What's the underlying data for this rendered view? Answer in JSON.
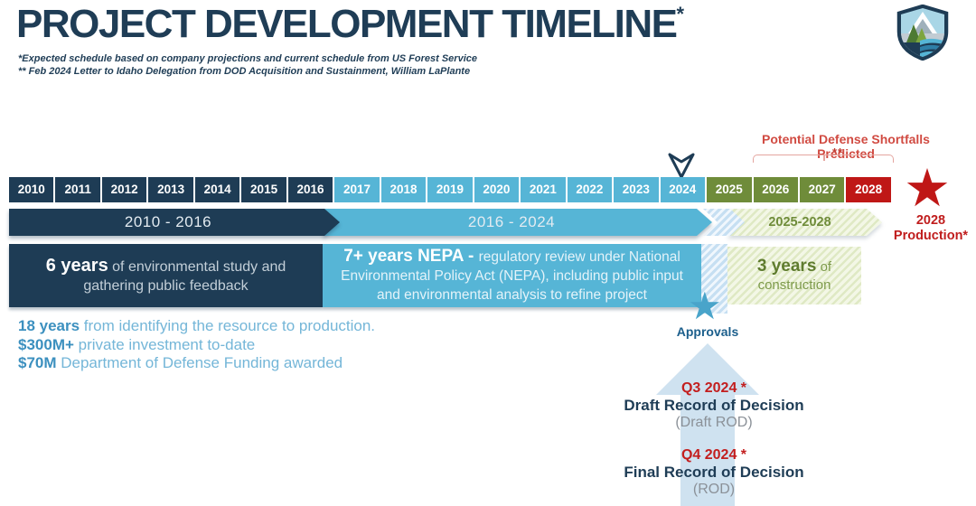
{
  "header": {
    "title": "PROJECT DEVELOPMENT TIMELINE",
    "title_note": "*",
    "footnote1": "*Expected schedule based on company projections and current schedule from US Forest Service",
    "footnote2": "** Feb 2024 Letter to Idaho Delegation from DOD Acquisition and Sustainment, William LaPlante"
  },
  "annotations": {
    "shortfall_label": "Potential Defense Shortfalls Predicted",
    "shortfall_note": "**",
    "approvals_label": "Approvals",
    "production_line1": "2028",
    "production_line2": "Production*"
  },
  "icons": {
    "star_glyph": "★",
    "logo_name": "mountain-shield-logo",
    "chevron_name": "chevron-down-2024"
  },
  "timeline": {
    "years": [
      {
        "label": "2010",
        "phase": "navy"
      },
      {
        "label": "2011",
        "phase": "navy"
      },
      {
        "label": "2012",
        "phase": "navy"
      },
      {
        "label": "2013",
        "phase": "navy"
      },
      {
        "label": "2014",
        "phase": "navy"
      },
      {
        "label": "2015",
        "phase": "navy"
      },
      {
        "label": "2016",
        "phase": "navy"
      },
      {
        "label": "2017",
        "phase": "blue"
      },
      {
        "label": "2018",
        "phase": "blue"
      },
      {
        "label": "2019",
        "phase": "blue"
      },
      {
        "label": "2020",
        "phase": "blue"
      },
      {
        "label": "2021",
        "phase": "blue"
      },
      {
        "label": "2022",
        "phase": "blue"
      },
      {
        "label": "2023",
        "phase": "blue"
      },
      {
        "label": "2024",
        "phase": "blue"
      },
      {
        "label": "2025",
        "phase": "olive"
      },
      {
        "label": "2026",
        "phase": "olive"
      },
      {
        "label": "2027",
        "phase": "olive"
      },
      {
        "label": "2028",
        "phase": "red"
      }
    ]
  },
  "phases": [
    {
      "label": "2010 - 2016"
    },
    {
      "label": "2016 - 2024"
    },
    {
      "label": "2025-2028"
    }
  ],
  "blocks": {
    "study": {
      "lead": "6 years",
      "rest": " of environmental study and gathering public feedback"
    },
    "nepa": {
      "lead": "7+ years NEPA - ",
      "rest": "regulatory review under National Environmental Policy Act (NEPA), including public input and environmental analysis to refine project"
    },
    "construction": {
      "lead": "3 years",
      "rest": " of construction"
    }
  },
  "stats": [
    {
      "lead": "18 years",
      "rest": "from identifying the resource to production."
    },
    {
      "lead": "$300M+",
      "rest": "private investment to-date"
    },
    {
      "lead": "$70M",
      "rest": "Department of Defense Funding awarded"
    }
  ],
  "milestones": [
    {
      "date": "Q3 2024 *",
      "title": "Draft Record of Decision",
      "sub": "(Draft ROD)"
    },
    {
      "date": "Q4 2024 *",
      "title": "Final Record of Decision",
      "sub": "(ROD)"
    }
  ],
  "colors": {
    "navy": "#1e3c55",
    "blue": "#56b5d6",
    "olive": "#6f8c3a",
    "red": "#bf1716",
    "accent_red_text": "#c31e1e",
    "shortfall_red": "#d14b42",
    "pale_arrow_blue": "#cfe2f0",
    "stats_blue_bold": "#3c90bf",
    "stats_blue": "#74b6d8"
  }
}
